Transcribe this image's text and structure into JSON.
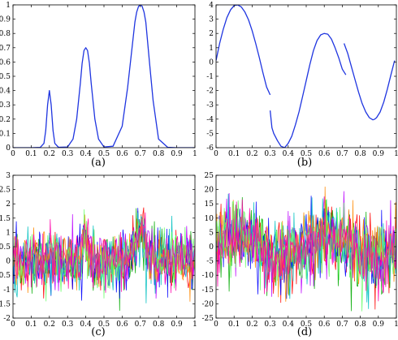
{
  "chart_data": [
    {
      "type": "line",
      "caption": "(a)",
      "xlim": [
        0,
        1
      ],
      "ylim": [
        0,
        1
      ],
      "xticks": [
        "0",
        "0.1",
        "0.2",
        "0.3",
        "0.4",
        "0.5",
        "0.6",
        "0.7",
        "0.8",
        "0.9",
        "1"
      ],
      "yticks": [
        "0",
        "0.1",
        "0.2",
        "0.3",
        "0.4",
        "0.5",
        "0.6",
        "0.7",
        "0.8",
        "0.9",
        "1"
      ],
      "grid": false,
      "color": "#1f35e0",
      "series": [
        {
          "x": [
            0,
            0.05,
            0.1,
            0.15,
            0.17,
            0.18,
            0.19,
            0.2,
            0.21,
            0.22,
            0.23,
            0.25,
            0.3,
            0.33,
            0.35,
            0.37,
            0.38,
            0.39,
            0.4,
            0.41,
            0.42,
            0.43,
            0.45,
            0.47,
            0.5,
            0.55,
            0.6,
            0.63,
            0.65,
            0.67,
            0.68,
            0.69,
            0.7,
            0.71,
            0.72,
            0.73,
            0.75,
            0.77,
            0.8,
            0.85,
            0.9,
            1
          ],
          "y": [
            0,
            0,
            0,
            0.002,
            0.03,
            0.12,
            0.3,
            0.4,
            0.3,
            0.12,
            0.03,
            0.003,
            0.005,
            0.06,
            0.2,
            0.45,
            0.59,
            0.68,
            0.7,
            0.68,
            0.59,
            0.45,
            0.2,
            0.06,
            0.005,
            0.01,
            0.15,
            0.42,
            0.65,
            0.88,
            0.95,
            0.99,
            1.0,
            0.99,
            0.95,
            0.88,
            0.6,
            0.33,
            0.06,
            0.003,
            0,
            0
          ]
        }
      ]
    },
    {
      "type": "line",
      "caption": "(b)",
      "xlim": [
        0,
        1
      ],
      "ylim": [
        -6,
        4
      ],
      "xticks": [
        "0",
        "0.1",
        "0.2",
        "0.3",
        "0.4",
        "0.5",
        "0.6",
        "0.7",
        "0.8",
        "0.9",
        "1"
      ],
      "yticks": [
        "-6",
        "-5",
        "-4",
        "-3",
        "-2",
        "-1",
        "0",
        "1",
        "2",
        "3",
        "4"
      ],
      "grid": false,
      "color": "#1f35e0",
      "series": [
        {
          "x": [
            0,
            0.02,
            0.04,
            0.06,
            0.08,
            0.1,
            0.12,
            0.14,
            0.16,
            0.18,
            0.2,
            0.22,
            0.24,
            0.26,
            0.28,
            0.3
          ],
          "y": [
            0.1,
            1.3,
            2.3,
            3.1,
            3.65,
            3.95,
            4.0,
            3.85,
            3.5,
            2.95,
            2.2,
            1.3,
            0.3,
            -0.75,
            -1.75,
            -2.3
          ]
        },
        {
          "x": [
            0.3,
            0.31,
            0.32,
            0.34,
            0.36,
            0.38,
            0.4,
            0.42,
            0.44,
            0.46,
            0.48,
            0.5,
            0.52,
            0.54,
            0.56,
            0.58,
            0.6,
            0.62,
            0.64,
            0.66,
            0.68,
            0.7,
            0.72
          ],
          "y": [
            -3.4,
            -4.6,
            -5.0,
            -5.5,
            -5.9,
            -6.0,
            -5.7,
            -5.2,
            -4.4,
            -3.5,
            -2.4,
            -1.3,
            -0.2,
            0.8,
            1.5,
            1.9,
            2.0,
            1.95,
            1.6,
            1.0,
            0.3,
            -0.5,
            -0.9
          ]
        },
        {
          "x": [
            0.71,
            0.73,
            0.75,
            0.77,
            0.79,
            0.81,
            0.83,
            0.85,
            0.87,
            0.88,
            0.89,
            0.91,
            0.93,
            0.95,
            0.97,
            0.99
          ],
          "y": [
            1.3,
            0.6,
            -0.3,
            -1.2,
            -2.1,
            -2.9,
            -3.5,
            -3.9,
            -4.05,
            -4.0,
            -3.9,
            -3.5,
            -2.8,
            -1.9,
            -0.9,
            0.1
          ]
        }
      ]
    },
    {
      "type": "line",
      "caption": "(c)",
      "xlim": [
        0,
        1
      ],
      "ylim": [
        -2,
        3
      ],
      "xticks": [
        "0",
        "0.1",
        "0.2",
        "0.3",
        "0.4",
        "0.5",
        "0.6",
        "0.7",
        "0.8",
        "0.9",
        "1"
      ],
      "yticks": [
        "-2",
        "-1.5",
        "-1",
        "-0.5",
        "0",
        "0.5",
        "1",
        "1.5",
        "2",
        "2.5",
        "3"
      ],
      "grid": false,
      "noisy": true,
      "noise_amplitude": 0.5,
      "base": "peaks",
      "colors": [
        "#ff0000",
        "#00aa00",
        "#0000ff",
        "#bb00ff",
        "#00c0c0",
        "#ff8800",
        "#66ff66",
        "#ff00aa"
      ]
    },
    {
      "type": "line",
      "caption": "(d)",
      "xlim": [
        0,
        1
      ],
      "ylim": [
        -25,
        25
      ],
      "xticks": [
        "0",
        "0.1",
        "0.2",
        "0.3",
        "0.4",
        "0.5",
        "0.6",
        "0.7",
        "0.8",
        "0.9",
        "1"
      ],
      "yticks": [
        "-25",
        "-20",
        "-15",
        "-10",
        "-5",
        "0",
        "5",
        "10",
        "15",
        "20",
        "25"
      ],
      "grid": false,
      "noisy": true,
      "noise_amplitude": 6,
      "base": "sine",
      "colors": [
        "#ff0000",
        "#00aa00",
        "#0000ff",
        "#bb00ff",
        "#00c0c0",
        "#ff8800",
        "#66ff66",
        "#ff00aa"
      ]
    }
  ]
}
